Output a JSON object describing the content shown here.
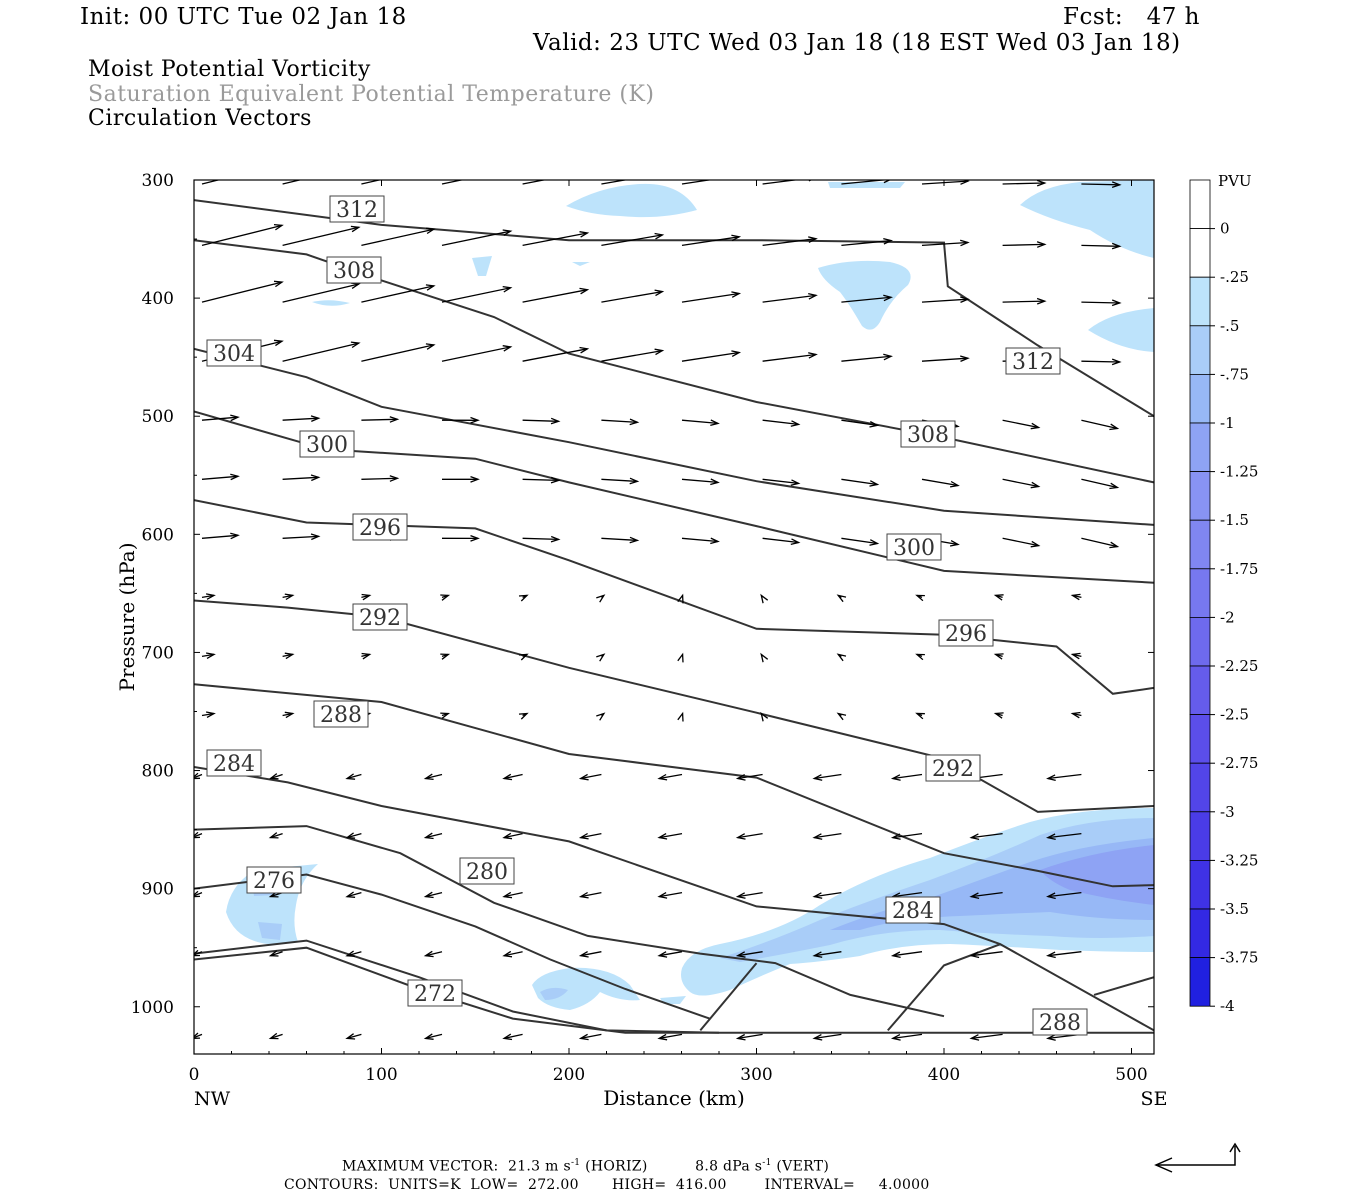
{
  "header": {
    "init": "Init: 00 UTC Tue 02 Jan 18",
    "fcst": "Fcst:   47 h",
    "valid": "Valid: 23 UTC Wed 03 Jan 18 (18 EST Wed 03 Jan 18)",
    "line1": "Moist Potential Vorticity",
    "line2": "Saturation Equivalent Potential Temperature (K)",
    "line3": "Circulation Vectors"
  },
  "footer": {
    "max_vector_label": "MAXIMUM VECTOR:",
    "horiz": "21.3 m s",
    "horiz_unit": "(HORIZ)",
    "vert": "8.8 dPa s",
    "vert_unit": "(VERT)",
    "contours": "CONTOURS:  UNITS=K  LOW=  272.00       HIGH=  416.00        INTERVAL=     4.0000"
  },
  "colors": {
    "pv_-0.25": "#bde3fb",
    "pv_-0.5": "#a9cdf8",
    "pv_-0.75": "#97b8f6",
    "pv_-1": "#8ea3f4",
    "contour": "#333333"
  },
  "chart_data": {
    "type": "contour",
    "xlabel": "Distance (km)",
    "ylabel": "Pressure (hPa)",
    "x_ticks": [
      0,
      100,
      200,
      300,
      400,
      500
    ],
    "y_ticks": [
      300,
      400,
      500,
      600,
      700,
      800,
      900,
      1000
    ],
    "xlim": [
      0,
      512
    ],
    "ylim": [
      300,
      1040
    ],
    "x_end_labels": {
      "left": "NW",
      "right": "SE"
    },
    "colorbar": {
      "unit": "PVU",
      "levels": [
        "0",
        "-.25",
        "-.5",
        "-.75",
        "-1",
        "-1.25",
        "-1.5",
        "-1.75",
        "-2",
        "-2.25",
        "-2.5",
        "-2.75",
        "-3",
        "-3.25",
        "-3.5",
        "-3.75",
        "-4"
      ],
      "colors": [
        "#ffffff",
        "#ffffff",
        "#bde3fb",
        "#a9cdf8",
        "#97b8f6",
        "#8ea3f4",
        "#8893f3",
        "#8086f1",
        "#7778ef",
        "#6e6aee",
        "#655cec",
        "#5b4eea",
        "#5245e8",
        "#4a3ce7",
        "#3f32e5",
        "#3329e3",
        "#2020e0"
      ]
    },
    "contours": [
      {
        "label": "312",
        "points": [
          [
            0,
            317
          ],
          [
            100,
            338
          ],
          [
            200,
            351
          ],
          [
            300,
            351
          ],
          [
            400,
            353
          ],
          [
            402,
            390
          ],
          [
            450,
            440
          ],
          [
            512,
            500
          ]
        ]
      },
      {
        "label": "308",
        "points": [
          [
            0,
            351
          ],
          [
            60,
            363
          ],
          [
            100,
            385
          ],
          [
            160,
            416
          ],
          [
            200,
            447
          ],
          [
            300,
            488
          ],
          [
            400,
            518
          ],
          [
            512,
            556
          ]
        ]
      },
      {
        "label": "304",
        "points": [
          [
            0,
            443
          ],
          [
            60,
            467
          ],
          [
            100,
            492
          ],
          [
            200,
            522
          ],
          [
            300,
            555
          ],
          [
            400,
            580
          ],
          [
            512,
            592
          ]
        ]
      },
      {
        "label": "300",
        "points": [
          [
            0,
            496
          ],
          [
            70,
            528
          ],
          [
            150,
            536
          ],
          [
            200,
            556
          ],
          [
            300,
            593
          ],
          [
            400,
            631
          ],
          [
            512,
            641
          ]
        ]
      },
      {
        "label": "296",
        "points": [
          [
            0,
            571
          ],
          [
            60,
            590
          ],
          [
            150,
            595
          ],
          [
            200,
            622
          ],
          [
            300,
            680
          ],
          [
            400,
            685
          ],
          [
            460,
            695
          ],
          [
            490,
            735
          ],
          [
            512,
            730
          ]
        ]
      },
      {
        "label": "292",
        "points": [
          [
            0,
            656
          ],
          [
            50,
            662
          ],
          [
            100,
            670
          ],
          [
            200,
            713
          ],
          [
            300,
            751
          ],
          [
            400,
            790
          ],
          [
            450,
            835
          ],
          [
            512,
            830
          ]
        ]
      },
      {
        "label": "288",
        "points": [
          [
            0,
            727
          ],
          [
            100,
            742
          ],
          [
            200,
            786
          ],
          [
            300,
            806
          ],
          [
            400,
            870
          ],
          [
            450,
            885
          ],
          [
            490,
            898
          ],
          [
            512,
            897
          ]
        ]
      },
      {
        "label": "284",
        "points": [
          [
            0,
            797
          ],
          [
            50,
            810
          ],
          [
            100,
            830
          ],
          [
            200,
            860
          ],
          [
            300,
            915
          ],
          [
            400,
            930
          ],
          [
            430,
            947
          ],
          [
            512,
            1020
          ]
        ]
      },
      {
        "label": "280",
        "points": [
          [
            0,
            850
          ],
          [
            60,
            847
          ],
          [
            110,
            870
          ],
          [
            160,
            912
          ],
          [
            210,
            940
          ],
          [
            270,
            955
          ],
          [
            310,
            963
          ],
          [
            350,
            990
          ],
          [
            400,
            1008
          ]
        ]
      },
      {
        "label": "276",
        "points": [
          [
            0,
            900
          ],
          [
            60,
            888
          ],
          [
            100,
            905
          ],
          [
            150,
            932
          ],
          [
            190,
            960
          ],
          [
            230,
            985
          ],
          [
            275,
            1010
          ]
        ]
      },
      {
        "label": "272",
        "points": [
          [
            0,
            955
          ],
          [
            60,
            944
          ],
          [
            120,
            975
          ],
          [
            170,
            1004
          ],
          [
            220,
            1020
          ],
          [
            280,
            1022
          ]
        ]
      }
    ],
    "pv_regions": [
      {
        "level": "-.25",
        "location": "300-330 hPa, 200-270 km"
      },
      {
        "level": "-.25",
        "location": "300-360 hPa, 440-512 km"
      },
      {
        "level": "-.25",
        "location": "380-440 hPa, 340-380 km"
      },
      {
        "level": "-.25",
        "location": "420-460 hPa, 480-512 km"
      },
      {
        "level": "-.25",
        "location": "880-950 hPa, 10-60 km"
      },
      {
        "level": "-.5",
        "location": "830-1000 hPa, 260-512 km"
      },
      {
        "level": "-.75",
        "location": "870-930 hPa, 330-512 km"
      },
      {
        "level": "-.25",
        "location": "960-1010 hPa, 180-240 km"
      }
    ]
  }
}
